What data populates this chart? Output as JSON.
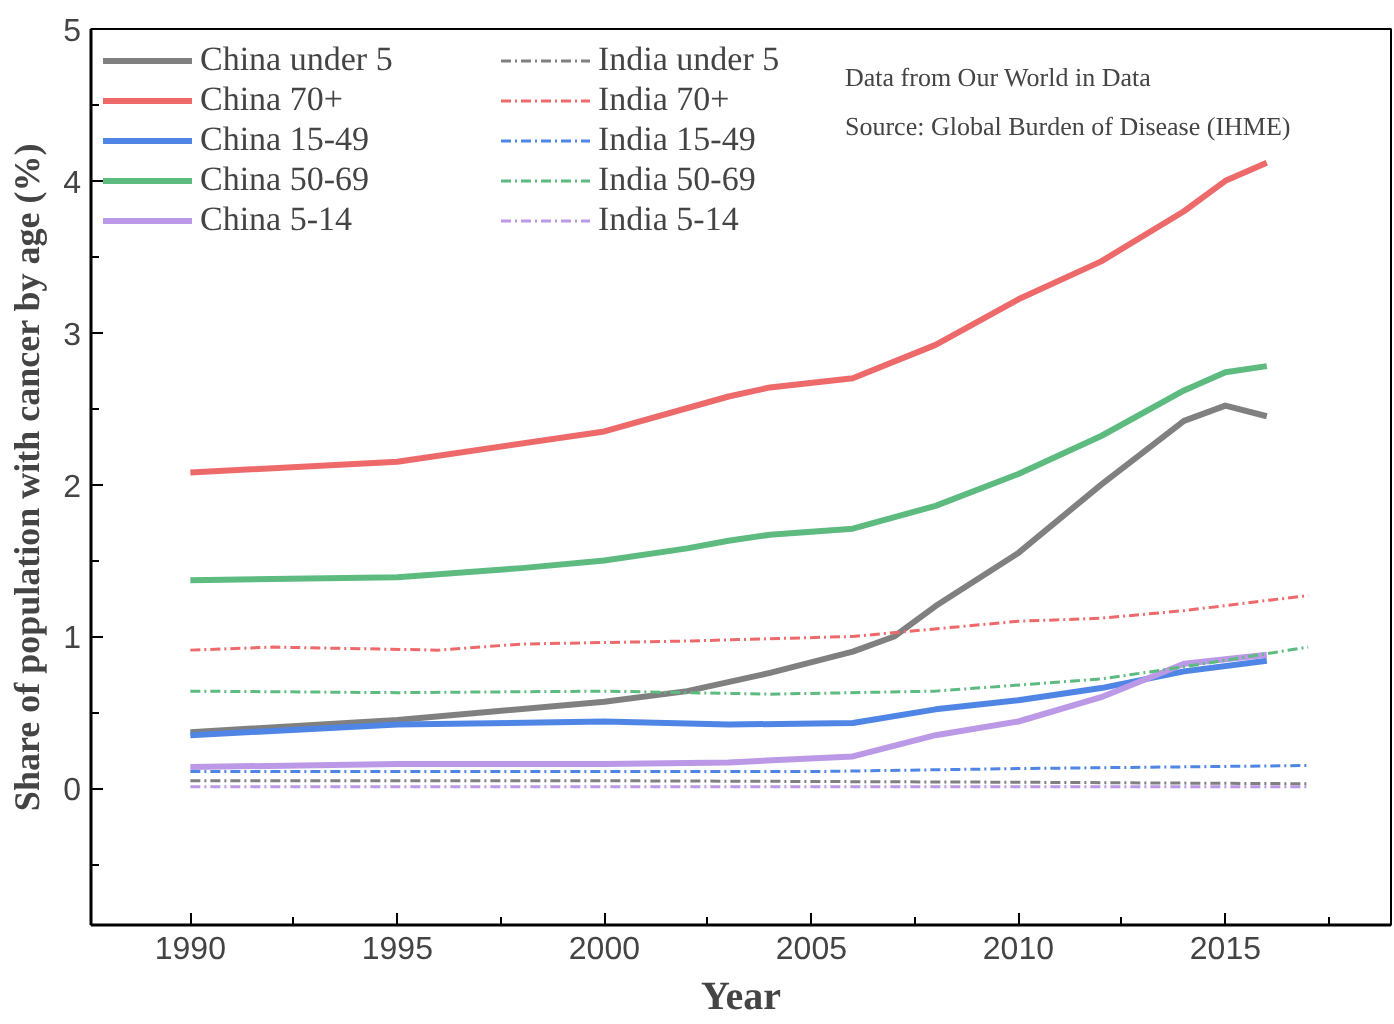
{
  "chart_data": {
    "type": "line",
    "xlabel": "Year",
    "ylabel": "Share of population with cancer by age (%)",
    "annotations": [
      "Data from Our World in Data",
      "Source: Global Burden of Disease (IHME)"
    ],
    "xlim": [
      1987.6,
      2019
    ],
    "xticks": [
      1990,
      1995,
      2000,
      2005,
      2010,
      2015
    ],
    "ylim": [
      -0.9,
      5
    ],
    "yticks": [
      0,
      1,
      2,
      3,
      4,
      5
    ],
    "legend": "top left",
    "grid": false,
    "series": [
      {
        "name": "China under 5",
        "color": "#808080",
        "line_style": "solid",
        "x": [
          1990,
          1995,
          2000,
          2002,
          2004,
          2006,
          2007,
          2008,
          2010,
          2012,
          2014,
          2015,
          2016
        ],
        "values": [
          0.37,
          0.45,
          0.57,
          0.64,
          0.76,
          0.9,
          1.0,
          1.2,
          1.55,
          2.0,
          2.42,
          2.52,
          2.45
        ]
      },
      {
        "name": "China 70+",
        "color": "#ee6a6a",
        "line_style": "solid",
        "x": [
          1990,
          1995,
          2000,
          2003,
          2004,
          2006,
          2008,
          2010,
          2012,
          2014,
          2015,
          2016
        ],
        "values": [
          2.08,
          2.15,
          2.35,
          2.58,
          2.64,
          2.7,
          2.92,
          3.22,
          3.47,
          3.8,
          4.0,
          4.12
        ]
      },
      {
        "name": "China 15-49",
        "color": "#4f86e6",
        "line_style": "solid",
        "x": [
          1990,
          1995,
          2000,
          2003,
          2006,
          2008,
          2010,
          2012,
          2014,
          2016
        ],
        "values": [
          0.35,
          0.42,
          0.44,
          0.42,
          0.43,
          0.52,
          0.58,
          0.66,
          0.77,
          0.84
        ]
      },
      {
        "name": "China 50-69",
        "color": "#5dbb80",
        "line_style": "solid",
        "x": [
          1990,
          1995,
          1998,
          2000,
          2002,
          2003,
          2004,
          2006,
          2008,
          2010,
          2012,
          2014,
          2015,
          2016
        ],
        "values": [
          1.37,
          1.39,
          1.45,
          1.5,
          1.58,
          1.63,
          1.67,
          1.71,
          1.86,
          2.07,
          2.32,
          2.62,
          2.74,
          2.78
        ]
      },
      {
        "name": "China 5-14",
        "color": "#bb99e6",
        "line_style": "solid",
        "x": [
          1990,
          1995,
          2000,
          2003,
          2006,
          2008,
          2010,
          2012,
          2014,
          2016
        ],
        "values": [
          0.14,
          0.16,
          0.16,
          0.17,
          0.21,
          0.35,
          0.44,
          0.6,
          0.82,
          0.88
        ]
      },
      {
        "name": "India under 5",
        "color": "#808080",
        "line_style": "dashdot",
        "x": [
          1990,
          2000,
          2010,
          2017
        ],
        "values": [
          0.05,
          0.05,
          0.04,
          0.03
        ]
      },
      {
        "name": "India 70+",
        "color": "#ee6a6a",
        "line_style": "dashdot",
        "x": [
          1990,
          1992,
          1996,
          1998,
          2002,
          2006,
          2010,
          2012,
          2014,
          2017
        ],
        "values": [
          0.91,
          0.93,
          0.91,
          0.95,
          0.97,
          1.0,
          1.1,
          1.12,
          1.17,
          1.27
        ]
      },
      {
        "name": "India 15-49",
        "color": "#4f86e6",
        "line_style": "dashdot",
        "x": [
          1990,
          2005,
          2010,
          2017
        ],
        "values": [
          0.11,
          0.11,
          0.13,
          0.15
        ]
      },
      {
        "name": "India 50-69",
        "color": "#5dbb80",
        "line_style": "dashdot",
        "x": [
          1990,
          1995,
          2000,
          2004,
          2008,
          2012,
          2014,
          2017
        ],
        "values": [
          0.64,
          0.63,
          0.64,
          0.62,
          0.64,
          0.72,
          0.8,
          0.93
        ]
      },
      {
        "name": "India 5-14",
        "color": "#bb99e6",
        "line_style": "dashdot",
        "x": [
          1990,
          2017
        ],
        "values": [
          0.01,
          0.01
        ]
      }
    ]
  }
}
